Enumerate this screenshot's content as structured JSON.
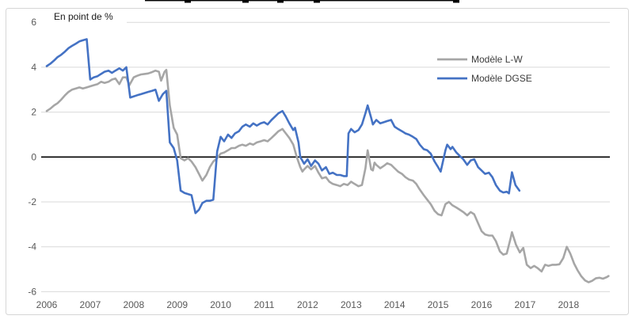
{
  "chart": {
    "unit_label": "En point de %"
  },
  "colors": {
    "grid": "#d9d9d9",
    "frame": "#d6d6d6",
    "zero_line": "#000000",
    "axis_text": "#595959",
    "series_lw": "#a6a6a6",
    "series_dgse": "#4472c4"
  },
  "chart_data": {
    "type": "line",
    "title": "",
    "unit_label": "En point de %",
    "xlabel": "",
    "ylabel": "",
    "xlim": [
      2006,
      2019
    ],
    "ylim": [
      -6,
      6
    ],
    "yticks": [
      6,
      4,
      2,
      0,
      -2,
      -4,
      -6
    ],
    "xticks": [
      2006,
      2007,
      2008,
      2009,
      2010,
      2011,
      2012,
      2013,
      2014,
      2015,
      2016,
      2017,
      2018
    ],
    "grid": true,
    "zero_line": true,
    "legend_position": "upper-right-inside",
    "series": [
      {
        "name": "Modèle L-W",
        "color": "#a6a6a6",
        "points": [
          [
            2006.0,
            2.05
          ],
          [
            2006.08,
            2.15
          ],
          [
            2006.17,
            2.3
          ],
          [
            2006.25,
            2.4
          ],
          [
            2006.33,
            2.55
          ],
          [
            2006.42,
            2.75
          ],
          [
            2006.5,
            2.9
          ],
          [
            2006.58,
            3.0
          ],
          [
            2006.67,
            3.05
          ],
          [
            2006.75,
            3.1
          ],
          [
            2006.83,
            3.05
          ],
          [
            2006.92,
            3.1
          ],
          [
            2007.0,
            3.15
          ],
          [
            2007.08,
            3.2
          ],
          [
            2007.17,
            3.25
          ],
          [
            2007.25,
            3.35
          ],
          [
            2007.33,
            3.3
          ],
          [
            2007.42,
            3.35
          ],
          [
            2007.5,
            3.45
          ],
          [
            2007.58,
            3.5
          ],
          [
            2007.67,
            3.25
          ],
          [
            2007.75,
            3.55
          ],
          [
            2007.83,
            3.55
          ],
          [
            2007.9,
            3.2
          ],
          [
            2008.0,
            3.55
          ],
          [
            2008.08,
            3.62
          ],
          [
            2008.17,
            3.68
          ],
          [
            2008.25,
            3.7
          ],
          [
            2008.33,
            3.72
          ],
          [
            2008.42,
            3.78
          ],
          [
            2008.5,
            3.85
          ],
          [
            2008.58,
            3.8
          ],
          [
            2008.63,
            3.4
          ],
          [
            2008.71,
            3.8
          ],
          [
            2008.75,
            3.88
          ],
          [
            2008.83,
            2.3
          ],
          [
            2008.92,
            1.3
          ],
          [
            2009.0,
            1.0
          ],
          [
            2009.08,
            -0.05
          ],
          [
            2009.17,
            -0.15
          ],
          [
            2009.25,
            -0.05
          ],
          [
            2009.33,
            -0.2
          ],
          [
            2009.42,
            -0.45
          ],
          [
            2009.5,
            -0.75
          ],
          [
            2009.58,
            -1.05
          ],
          [
            2009.67,
            -0.8
          ],
          [
            2009.75,
            -0.45
          ],
          [
            2009.83,
            -0.2
          ],
          [
            2009.92,
            -0.05
          ],
          [
            2010.0,
            0.15
          ],
          [
            2010.08,
            0.2
          ],
          [
            2010.17,
            0.3
          ],
          [
            2010.25,
            0.4
          ],
          [
            2010.33,
            0.4
          ],
          [
            2010.42,
            0.5
          ],
          [
            2010.5,
            0.55
          ],
          [
            2010.58,
            0.5
          ],
          [
            2010.67,
            0.6
          ],
          [
            2010.75,
            0.55
          ],
          [
            2010.83,
            0.65
          ],
          [
            2010.92,
            0.7
          ],
          [
            2011.0,
            0.75
          ],
          [
            2011.08,
            0.7
          ],
          [
            2011.17,
            0.85
          ],
          [
            2011.25,
            1.0
          ],
          [
            2011.33,
            1.15
          ],
          [
            2011.42,
            1.25
          ],
          [
            2011.5,
            1.05
          ],
          [
            2011.58,
            0.85
          ],
          [
            2011.67,
            0.55
          ],
          [
            2011.75,
            0.0
          ],
          [
            2011.83,
            -0.45
          ],
          [
            2011.88,
            -0.65
          ],
          [
            2011.92,
            -0.55
          ],
          [
            2012.0,
            -0.4
          ],
          [
            2012.08,
            -0.55
          ],
          [
            2012.17,
            -0.4
          ],
          [
            2012.25,
            -0.7
          ],
          [
            2012.33,
            -0.95
          ],
          [
            2012.42,
            -0.9
          ],
          [
            2012.5,
            -1.1
          ],
          [
            2012.58,
            -1.2
          ],
          [
            2012.67,
            -1.25
          ],
          [
            2012.75,
            -1.3
          ],
          [
            2012.83,
            -1.2
          ],
          [
            2012.92,
            -1.25
          ],
          [
            2013.0,
            -1.1
          ],
          [
            2013.08,
            -1.2
          ],
          [
            2013.17,
            -1.3
          ],
          [
            2013.25,
            -1.25
          ],
          [
            2013.33,
            -0.5
          ],
          [
            2013.38,
            0.3
          ],
          [
            2013.46,
            -0.55
          ],
          [
            2013.5,
            -0.6
          ],
          [
            2013.54,
            -0.25
          ],
          [
            2013.58,
            -0.35
          ],
          [
            2013.67,
            -0.5
          ],
          [
            2013.75,
            -0.4
          ],
          [
            2013.83,
            -0.28
          ],
          [
            2013.92,
            -0.35
          ],
          [
            2014.0,
            -0.5
          ],
          [
            2014.08,
            -0.65
          ],
          [
            2014.17,
            -0.75
          ],
          [
            2014.25,
            -0.9
          ],
          [
            2014.33,
            -1.0
          ],
          [
            2014.42,
            -1.05
          ],
          [
            2014.5,
            -1.2
          ],
          [
            2014.58,
            -1.45
          ],
          [
            2014.67,
            -1.7
          ],
          [
            2014.75,
            -1.9
          ],
          [
            2014.83,
            -2.1
          ],
          [
            2014.92,
            -2.4
          ],
          [
            2015.0,
            -2.55
          ],
          [
            2015.08,
            -2.6
          ],
          [
            2015.17,
            -2.1
          ],
          [
            2015.25,
            -2.0
          ],
          [
            2015.33,
            -2.15
          ],
          [
            2015.42,
            -2.25
          ],
          [
            2015.5,
            -2.35
          ],
          [
            2015.58,
            -2.45
          ],
          [
            2015.67,
            -2.6
          ],
          [
            2015.75,
            -2.45
          ],
          [
            2015.83,
            -2.55
          ],
          [
            2015.92,
            -2.95
          ],
          [
            2016.0,
            -3.3
          ],
          [
            2016.08,
            -3.45
          ],
          [
            2016.17,
            -3.5
          ],
          [
            2016.25,
            -3.5
          ],
          [
            2016.33,
            -3.75
          ],
          [
            2016.42,
            -4.2
          ],
          [
            2016.5,
            -4.35
          ],
          [
            2016.58,
            -4.3
          ],
          [
            2016.67,
            -3.6
          ],
          [
            2016.7,
            -3.35
          ],
          [
            2016.79,
            -3.9
          ],
          [
            2016.88,
            -4.25
          ],
          [
            2016.96,
            -4.05
          ],
          [
            2017.04,
            -4.8
          ],
          [
            2017.13,
            -4.95
          ],
          [
            2017.21,
            -4.85
          ],
          [
            2017.29,
            -4.95
          ],
          [
            2017.38,
            -5.1
          ],
          [
            2017.46,
            -4.8
          ],
          [
            2017.54,
            -4.85
          ],
          [
            2017.63,
            -4.8
          ],
          [
            2017.71,
            -4.8
          ],
          [
            2017.79,
            -4.78
          ],
          [
            2017.88,
            -4.5
          ],
          [
            2017.96,
            -4.0
          ],
          [
            2018.04,
            -4.3
          ],
          [
            2018.13,
            -4.75
          ],
          [
            2018.21,
            -5.05
          ],
          [
            2018.29,
            -5.3
          ],
          [
            2018.38,
            -5.5
          ],
          [
            2018.46,
            -5.58
          ],
          [
            2018.54,
            -5.52
          ],
          [
            2018.63,
            -5.4
          ],
          [
            2018.71,
            -5.38
          ],
          [
            2018.79,
            -5.42
          ],
          [
            2018.88,
            -5.35
          ],
          [
            2018.92,
            -5.3
          ]
        ]
      },
      {
        "name": "Modèle DGSE",
        "color": "#4472c4",
        "points": [
          [
            2006.0,
            4.05
          ],
          [
            2006.08,
            4.15
          ],
          [
            2006.17,
            4.3
          ],
          [
            2006.25,
            4.45
          ],
          [
            2006.33,
            4.55
          ],
          [
            2006.42,
            4.7
          ],
          [
            2006.5,
            4.85
          ],
          [
            2006.58,
            4.95
          ],
          [
            2006.67,
            5.05
          ],
          [
            2006.75,
            5.15
          ],
          [
            2006.83,
            5.2
          ],
          [
            2006.92,
            5.25
          ],
          [
            2007.0,
            3.45
          ],
          [
            2007.08,
            3.55
          ],
          [
            2007.17,
            3.6
          ],
          [
            2007.25,
            3.7
          ],
          [
            2007.33,
            3.8
          ],
          [
            2007.42,
            3.85
          ],
          [
            2007.5,
            3.75
          ],
          [
            2007.58,
            3.85
          ],
          [
            2007.67,
            3.95
          ],
          [
            2007.75,
            3.85
          ],
          [
            2007.83,
            4.0
          ],
          [
            2007.92,
            2.65
          ],
          [
            2008.0,
            2.7
          ],
          [
            2008.08,
            2.75
          ],
          [
            2008.17,
            2.8
          ],
          [
            2008.25,
            2.85
          ],
          [
            2008.33,
            2.9
          ],
          [
            2008.42,
            2.95
          ],
          [
            2008.5,
            3.0
          ],
          [
            2008.58,
            2.5
          ],
          [
            2008.67,
            2.8
          ],
          [
            2008.75,
            2.95
          ],
          [
            2008.83,
            0.65
          ],
          [
            2008.92,
            0.4
          ],
          [
            2009.0,
            -0.15
          ],
          [
            2009.08,
            -1.5
          ],
          [
            2009.17,
            -1.6
          ],
          [
            2009.25,
            -1.65
          ],
          [
            2009.33,
            -1.7
          ],
          [
            2009.42,
            -2.5
          ],
          [
            2009.5,
            -2.35
          ],
          [
            2009.58,
            -2.05
          ],
          [
            2009.67,
            -1.95
          ],
          [
            2009.75,
            -1.95
          ],
          [
            2009.83,
            -1.9
          ],
          [
            2009.92,
            0.25
          ],
          [
            2010.0,
            0.9
          ],
          [
            2010.08,
            0.7
          ],
          [
            2010.17,
            1.0
          ],
          [
            2010.25,
            0.85
          ],
          [
            2010.33,
            1.05
          ],
          [
            2010.42,
            1.15
          ],
          [
            2010.5,
            1.35
          ],
          [
            2010.58,
            1.45
          ],
          [
            2010.67,
            1.35
          ],
          [
            2010.75,
            1.5
          ],
          [
            2010.83,
            1.4
          ],
          [
            2010.92,
            1.5
          ],
          [
            2011.0,
            1.55
          ],
          [
            2011.08,
            1.45
          ],
          [
            2011.17,
            1.65
          ],
          [
            2011.25,
            1.8
          ],
          [
            2011.33,
            1.95
          ],
          [
            2011.42,
            2.05
          ],
          [
            2011.5,
            1.8
          ],
          [
            2011.58,
            1.5
          ],
          [
            2011.67,
            1.2
          ],
          [
            2011.71,
            1.3
          ],
          [
            2011.79,
            0.65
          ],
          [
            2011.83,
            0.0
          ],
          [
            2011.92,
            -0.3
          ],
          [
            2012.0,
            -0.1
          ],
          [
            2012.08,
            -0.4
          ],
          [
            2012.17,
            -0.15
          ],
          [
            2012.25,
            -0.3
          ],
          [
            2012.33,
            -0.6
          ],
          [
            2012.42,
            -0.45
          ],
          [
            2012.5,
            -0.75
          ],
          [
            2012.58,
            -0.7
          ],
          [
            2012.67,
            -0.8
          ],
          [
            2012.75,
            -0.8
          ],
          [
            2012.83,
            -0.85
          ],
          [
            2012.9,
            -0.85
          ],
          [
            2012.94,
            1.05
          ],
          [
            2013.0,
            1.25
          ],
          [
            2013.08,
            1.1
          ],
          [
            2013.17,
            1.2
          ],
          [
            2013.25,
            1.45
          ],
          [
            2013.33,
            1.95
          ],
          [
            2013.38,
            2.3
          ],
          [
            2013.46,
            1.75
          ],
          [
            2013.5,
            1.45
          ],
          [
            2013.58,
            1.65
          ],
          [
            2013.67,
            1.5
          ],
          [
            2013.75,
            1.55
          ],
          [
            2013.83,
            1.6
          ],
          [
            2013.92,
            1.65
          ],
          [
            2014.0,
            1.35
          ],
          [
            2014.08,
            1.25
          ],
          [
            2014.17,
            1.15
          ],
          [
            2014.25,
            1.05
          ],
          [
            2014.33,
            1.0
          ],
          [
            2014.42,
            0.9
          ],
          [
            2014.5,
            0.8
          ],
          [
            2014.58,
            0.55
          ],
          [
            2014.67,
            0.35
          ],
          [
            2014.75,
            0.3
          ],
          [
            2014.83,
            0.15
          ],
          [
            2014.92,
            -0.2
          ],
          [
            2015.0,
            -0.45
          ],
          [
            2015.06,
            -0.65
          ],
          [
            2015.17,
            0.3
          ],
          [
            2015.21,
            0.55
          ],
          [
            2015.29,
            0.35
          ],
          [
            2015.33,
            0.45
          ],
          [
            2015.42,
            0.2
          ],
          [
            2015.5,
            0.05
          ],
          [
            2015.58,
            -0.1
          ],
          [
            2015.67,
            -0.35
          ],
          [
            2015.75,
            -0.15
          ],
          [
            2015.83,
            -0.1
          ],
          [
            2015.92,
            -0.45
          ],
          [
            2016.0,
            -0.6
          ],
          [
            2016.08,
            -0.75
          ],
          [
            2016.17,
            -0.7
          ],
          [
            2016.25,
            -0.9
          ],
          [
            2016.33,
            -1.25
          ],
          [
            2016.42,
            -1.5
          ],
          [
            2016.5,
            -1.58
          ],
          [
            2016.58,
            -1.55
          ],
          [
            2016.63,
            -1.62
          ],
          [
            2016.7,
            -0.68
          ],
          [
            2016.78,
            -1.25
          ],
          [
            2016.87,
            -1.5
          ]
        ]
      }
    ]
  }
}
